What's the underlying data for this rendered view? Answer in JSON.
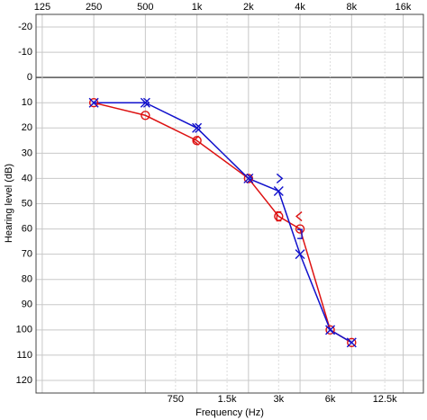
{
  "chart_data": {
    "type": "audiogram",
    "xlabel": "Frequency (Hz)",
    "ylabel": "Hearing level (dB)",
    "log_x": true,
    "y_inverted": true,
    "grid": true,
    "xlim": [
      115,
      21000
    ],
    "ylim": [
      -25,
      125
    ],
    "xticks_top": [
      125,
      250,
      500,
      {
        "value": 1000,
        "label": "1k"
      },
      {
        "value": 2000,
        "label": "2k"
      },
      {
        "value": 4000,
        "label": "4k"
      },
      {
        "value": 8000,
        "label": "8k"
      },
      {
        "value": 16000,
        "label": "16k"
      }
    ],
    "xticks_bottom": [
      750,
      {
        "value": 1500,
        "label": "1.5k"
      },
      {
        "value": 3000,
        "label": "3k"
      },
      {
        "value": 6000,
        "label": "6k"
      },
      {
        "value": 12500,
        "label": "12.5k"
      }
    ],
    "yticks": [
      -20,
      -10,
      0,
      10,
      20,
      30,
      40,
      50,
      60,
      70,
      80,
      90,
      100,
      110,
      120
    ],
    "series": [
      {
        "color": "#dd1111",
        "marker": "o",
        "line": "solid",
        "x": [
          250,
          500,
          1000,
          2000,
          3000,
          4000,
          6000,
          8000
        ],
        "values": [
          10,
          15,
          25,
          40,
          55,
          60,
          100,
          105
        ]
      },
      {
        "color": "#1111cc",
        "marker": "x",
        "line": "solid",
        "x": [
          250,
          500,
          1000,
          2000,
          3000,
          4000,
          6000,
          8000
        ],
        "values": [
          10,
          10,
          20,
          40,
          45,
          70,
          100,
          105
        ]
      },
      {
        "color": "#1111cc",
        "markers": [
          ">",
          ">",
          ">",
          ">",
          "]"
        ],
        "line": "none",
        "x": [
          500,
          1000,
          2000,
          3000,
          4000
        ],
        "values": [
          10,
          20,
          40,
          40,
          62
        ]
      },
      {
        "color": "#dd1111",
        "markers": [
          "<",
          "[",
          "<"
        ],
        "line": "none",
        "x": [
          1000,
          3000,
          4000
        ],
        "values": [
          25,
          55,
          55
        ]
      }
    ]
  }
}
